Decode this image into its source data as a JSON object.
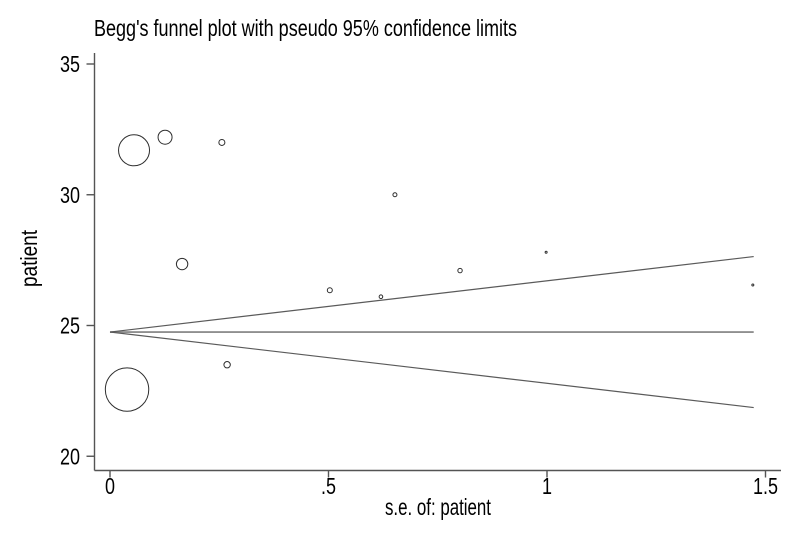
{
  "window": {
    "background": "#ffffff"
  },
  "chart_data": {
    "type": "scatter",
    "title": "Begg's funnel plot with pseudo 95% confidence limits",
    "xlabel": "s.e. of: patient",
    "ylabel": "patient",
    "xlim": [
      -0.035,
      1.535
    ],
    "ylim": [
      19.5,
      35.4
    ],
    "grid": false,
    "legend": "none",
    "x_ticks": [
      {
        "value": 0,
        "label": "0"
      },
      {
        "value": 0.5,
        "label": ".5"
      },
      {
        "value": 1,
        "label": "1"
      },
      {
        "value": 1.5,
        "label": "1.5"
      }
    ],
    "y_ticks": [
      {
        "value": 20,
        "label": "20"
      },
      {
        "value": 25,
        "label": "25"
      },
      {
        "value": 30,
        "label": "30"
      },
      {
        "value": 35,
        "label": "35"
      }
    ],
    "pooled_effect": 24.75,
    "ci_multiplier": 1.96,
    "funnel_se_extent": 1.473,
    "series": [
      {
        "name": "studies",
        "marker": "hollow-circle",
        "points": [
          {
            "se": 0.039,
            "effect": 22.55,
            "r": 21.7
          },
          {
            "se": 0.055,
            "effect": 31.7,
            "r": 15.5
          },
          {
            "se": 0.126,
            "effect": 32.2,
            "r": 7.0
          },
          {
            "se": 0.165,
            "effect": 27.35,
            "r": 5.7
          },
          {
            "se": 0.256,
            "effect": 32.0,
            "r": 3.0
          },
          {
            "se": 0.268,
            "effect": 23.5,
            "r": 3.2
          },
          {
            "se": 0.503,
            "effect": 26.35,
            "r": 2.5
          },
          {
            "se": 0.62,
            "effect": 26.1,
            "r": 1.8
          },
          {
            "se": 0.652,
            "effect": 30.0,
            "r": 2.0
          },
          {
            "se": 0.801,
            "effect": 27.1,
            "r": 2.2
          },
          {
            "se": 0.998,
            "effect": 27.8,
            "r": 1.0
          },
          {
            "se": 1.471,
            "effect": 26.55,
            "r": 1.0
          }
        ]
      }
    ],
    "colors": {
      "marker_stroke": "#2e2e2e",
      "funnel_line": "#5a5a5a",
      "pooled_line": "#8f8f8f",
      "axis": "#545454",
      "text": "#000000"
    }
  }
}
